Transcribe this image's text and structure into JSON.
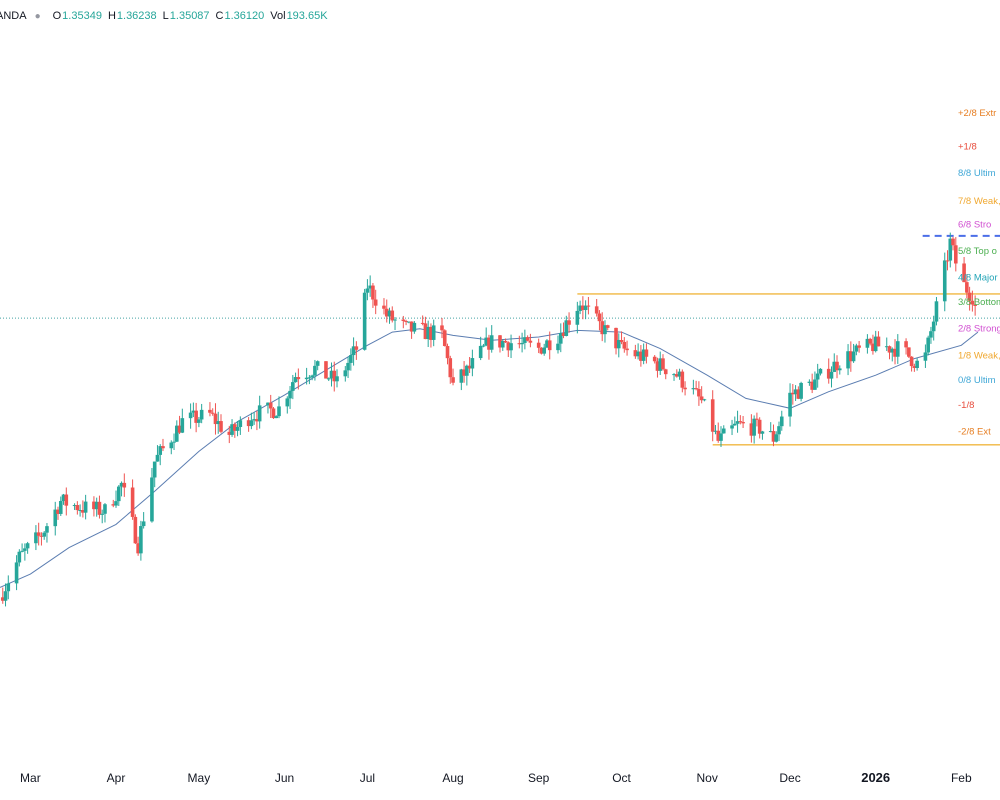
{
  "legend": {
    "symbol": "ANDA",
    "open_label": "O",
    "open": "1.35349",
    "high_label": "H",
    "high": "1.36238",
    "low_label": "L",
    "low": "1.35087",
    "close_label": "C",
    "close": "1.36120",
    "vol_label": "Vol",
    "vol": "193.65K"
  },
  "chart_data": {
    "type": "candlestick",
    "title": "",
    "xlabel": "",
    "ylabel": "",
    "x_ticks": [
      {
        "label": "Mar",
        "date": "2025-03-01",
        "bold": false
      },
      {
        "label": "Apr",
        "date": "2025-04-01",
        "bold": false
      },
      {
        "label": "May",
        "date": "2025-05-01",
        "bold": false
      },
      {
        "label": "Jun",
        "date": "2025-06-01",
        "bold": false
      },
      {
        "label": "Jul",
        "date": "2025-07-01",
        "bold": false
      },
      {
        "label": "Aug",
        "date": "2025-08-01",
        "bold": false
      },
      {
        "label": "Sep",
        "date": "2025-09-01",
        "bold": false
      },
      {
        "label": "Oct",
        "date": "2025-10-01",
        "bold": false
      },
      {
        "label": "Nov",
        "date": "2025-11-01",
        "bold": false
      },
      {
        "label": "Dec",
        "date": "2025-12-01",
        "bold": false
      },
      {
        "label": "2026",
        "date": "2026-01-01",
        "bold": true
      },
      {
        "label": "Feb",
        "date": "2026-02-01",
        "bold": false
      }
    ],
    "x_range": [
      "2025-02-18",
      "2026-02-15"
    ],
    "y_range": [
      1.24,
      1.43
    ],
    "grid": false,
    "last_close": 1.3612,
    "up_color": "#26a69a",
    "down_color": "#ef5350",
    "ma_color": "#5b7db1",
    "ma_series": [
      [
        "2025-02-18",
        1.28
      ],
      [
        "2025-03-01",
        1.284
      ],
      [
        "2025-03-15",
        1.292
      ],
      [
        "2025-04-01",
        1.299
      ],
      [
        "2025-04-15",
        1.309
      ],
      [
        "2025-05-01",
        1.321
      ],
      [
        "2025-05-15",
        1.33
      ],
      [
        "2025-06-01",
        1.338
      ],
      [
        "2025-06-15",
        1.345
      ],
      [
        "2025-07-01",
        1.353
      ],
      [
        "2025-07-10",
        1.357
      ],
      [
        "2025-07-20",
        1.358
      ],
      [
        "2025-08-01",
        1.356
      ],
      [
        "2025-08-15",
        1.3545
      ],
      [
        "2025-09-01",
        1.3555
      ],
      [
        "2025-09-15",
        1.3575
      ],
      [
        "2025-10-01",
        1.357
      ],
      [
        "2025-10-15",
        1.352
      ],
      [
        "2025-11-01",
        1.344
      ],
      [
        "2025-11-15",
        1.337
      ],
      [
        "2025-12-01",
        1.334
      ],
      [
        "2025-12-15",
        1.339
      ],
      [
        "2026-01-01",
        1.344
      ],
      [
        "2026-01-15",
        1.349
      ],
      [
        "2026-02-01",
        1.353
      ],
      [
        "2026-02-07",
        1.357
      ]
    ],
    "price_path": [
      [
        "2025-02-18",
        1.277
      ],
      [
        "2025-02-25",
        1.289
      ],
      [
        "2025-03-05",
        1.296
      ],
      [
        "2025-03-12",
        1.306
      ],
      [
        "2025-03-20",
        1.304
      ],
      [
        "2025-03-28",
        1.303
      ],
      [
        "2025-04-03",
        1.311
      ],
      [
        "2025-04-09",
        1.293
      ],
      [
        "2025-04-15",
        1.318
      ],
      [
        "2025-04-25",
        1.33
      ],
      [
        "2025-05-05",
        1.332
      ],
      [
        "2025-05-12",
        1.326
      ],
      [
        "2025-05-20",
        1.332
      ],
      [
        "2025-05-30",
        1.334
      ],
      [
        "2025-06-05",
        1.344
      ],
      [
        "2025-06-12",
        1.346
      ],
      [
        "2025-06-20",
        1.342
      ],
      [
        "2025-06-27",
        1.352
      ],
      [
        "2025-07-01",
        1.371
      ],
      [
        "2025-07-08",
        1.362
      ],
      [
        "2025-07-15",
        1.358
      ],
      [
        "2025-07-22",
        1.357
      ],
      [
        "2025-07-28",
        1.356
      ],
      [
        "2025-08-01",
        1.341
      ],
      [
        "2025-08-07",
        1.346
      ],
      [
        "2025-08-14",
        1.354
      ],
      [
        "2025-08-21",
        1.354
      ],
      [
        "2025-09-01",
        1.352
      ],
      [
        "2025-09-08",
        1.356
      ],
      [
        "2025-09-16",
        1.366
      ],
      [
        "2025-09-22",
        1.36
      ],
      [
        "2025-10-01",
        1.352
      ],
      [
        "2025-10-10",
        1.349
      ],
      [
        "2025-10-20",
        1.345
      ],
      [
        "2025-10-30",
        1.336
      ],
      [
        "2025-11-05",
        1.324
      ],
      [
        "2025-11-12",
        1.329
      ],
      [
        "2025-11-20",
        1.328
      ],
      [
        "2025-11-25",
        1.325
      ],
      [
        "2025-12-01",
        1.338
      ],
      [
        "2025-12-10",
        1.342
      ],
      [
        "2025-12-20",
        1.349
      ],
      [
        "2025-12-31",
        1.353
      ],
      [
        "2026-01-10",
        1.352
      ],
      [
        "2026-01-18",
        1.346
      ],
      [
        "2026-01-24",
        1.368
      ],
      [
        "2026-01-28",
        1.384
      ],
      [
        "2026-02-01",
        1.372
      ],
      [
        "2026-02-05",
        1.368
      ],
      [
        "2026-02-07",
        1.3612
      ]
    ],
    "horizontal_levels": [
      {
        "kind": "solid",
        "color": "#f0b740",
        "value": 1.3685,
        "from": "2025-09-15",
        "to": "2026-02-15"
      },
      {
        "kind": "solid",
        "color": "#f0b740",
        "value": 1.323,
        "from": "2025-11-03",
        "to": "2026-02-15"
      },
      {
        "kind": "dashed",
        "color": "#4b6ee8",
        "value": 1.386,
        "from": "2026-01-18",
        "to": "2026-02-15"
      },
      {
        "kind": "dotted",
        "color": "#44a3a3",
        "value": 1.3612,
        "from": "2025-02-18",
        "to": "2026-02-15"
      }
    ],
    "murrey_labels": [
      {
        "text": "+2/8 Extr",
        "value": 1.423,
        "color": "#e67e22"
      },
      {
        "text": "+1/8",
        "value": 1.413,
        "color": "#e74c3c"
      },
      {
        "text": "8/8 Ultim",
        "value": 1.405,
        "color": "#3fa7d6"
      },
      {
        "text": "7/8 Weak,",
        "value": 1.3965,
        "color": "#f0a830"
      },
      {
        "text": "6/8 Stro",
        "value": 1.3895,
        "color": "#d14fd1"
      },
      {
        "text": "5/8 Top o",
        "value": 1.3815,
        "color": "#4caf50"
      },
      {
        "text": "4/8 Major",
        "value": 1.3735,
        "color": "#26a6b8"
      },
      {
        "text": "3/8 Bottom",
        "value": 1.366,
        "color": "#4caf50"
      },
      {
        "text": "2/8 Strong",
        "value": 1.358,
        "color": "#d14fd1"
      },
      {
        "text": "1/8 Weak,",
        "value": 1.35,
        "color": "#f0a830"
      },
      {
        "text": "0/8 Ultim",
        "value": 1.3425,
        "color": "#3fa7d6"
      },
      {
        "text": "-1/8",
        "value": 1.335,
        "color": "#e74c3c"
      },
      {
        "text": "-2/8 Ext",
        "value": 1.327,
        "color": "#e67e22"
      }
    ]
  }
}
